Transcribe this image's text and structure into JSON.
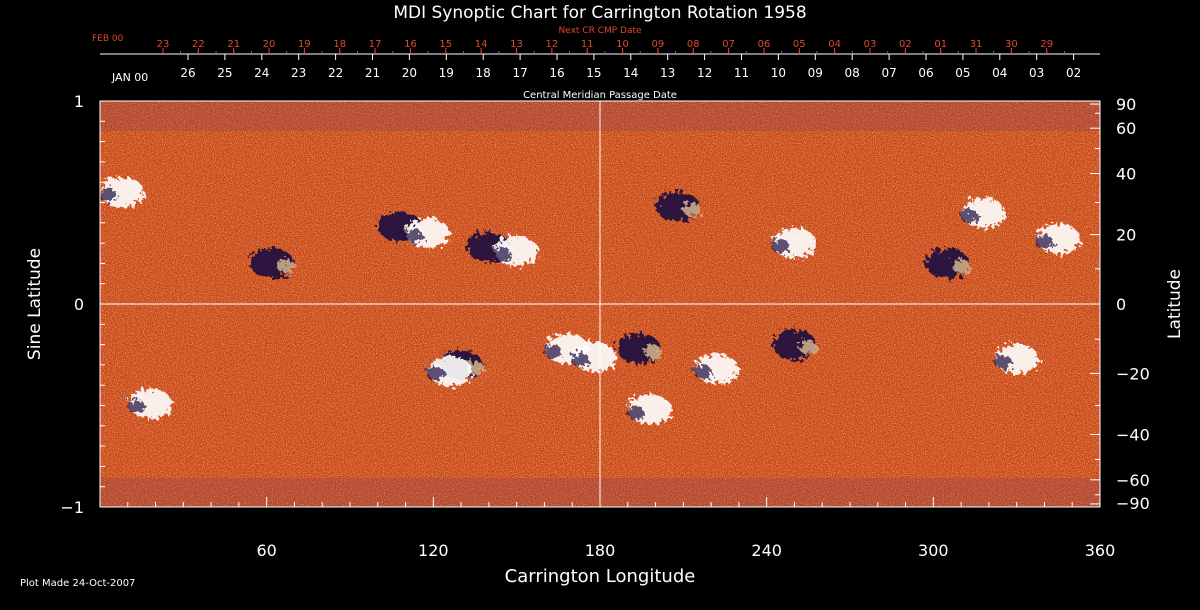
{
  "chart_data": {
    "type": "heatmap",
    "title": "MDI Synoptic Chart for Carrington Rotation 1958",
    "xlabel": "Carrington Longitude",
    "ylabel_left": "Sine Latitude",
    "ylabel_right": "Latitude",
    "top_axis_upper_label": "Next CR CMP Date",
    "top_axis_lower_label": "Central Meridian Passage Date",
    "xlim": [
      0,
      360
    ],
    "ylim": [
      -1,
      1
    ],
    "x_ticks": [
      60,
      120,
      180,
      240,
      300,
      360
    ],
    "y_ticks_left": [
      {
        "value": 1,
        "label": "1"
      },
      {
        "value": 0,
        "label": "0"
      },
      {
        "value": -1,
        "label": "−1"
      }
    ],
    "y_ticks_right": [
      {
        "lat": 90,
        "label": "90"
      },
      {
        "lat": 60,
        "label": "60"
      },
      {
        "lat": 40,
        "label": "40"
      },
      {
        "lat": 20,
        "label": "20"
      },
      {
        "lat": 0,
        "label": "0"
      },
      {
        "lat": -20,
        "label": "−20"
      },
      {
        "lat": -40,
        "label": "−40"
      },
      {
        "lat": -60,
        "label": "−60"
      },
      {
        "lat": -90,
        "label": "−90"
      }
    ],
    "next_cr_dates": {
      "start_label": "FEB 00",
      "labels": [
        "23",
        "22",
        "21",
        "20",
        "19",
        "18",
        "17",
        "16",
        "15",
        "14",
        "13",
        "12",
        "11",
        "10",
        "09",
        "08",
        "07",
        "06",
        "05",
        "04",
        "03",
        "02",
        "01",
        "31",
        "30",
        "29"
      ]
    },
    "cmp_dates": {
      "start_label": "JAN 00",
      "labels": [
        "26",
        "25",
        "24",
        "23",
        "22",
        "21",
        "20",
        "19",
        "18",
        "17",
        "16",
        "15",
        "14",
        "13",
        "12",
        "11",
        "10",
        "09",
        "08",
        "07",
        "06",
        "05",
        "04",
        "03",
        "02"
      ]
    },
    "colors": {
      "background_map": "#d8561e",
      "positive_polarity": "#ffffff",
      "negative_polarity": "#1a1040",
      "axis": "#ffffff",
      "next_cr_text": "#e04a2a"
    },
    "regions": [
      {
        "lon": 8,
        "sinlat": 0.55,
        "polarity": "positive"
      },
      {
        "lon": 62,
        "sinlat": 0.2,
        "polarity": "negative"
      },
      {
        "lon": 108,
        "sinlat": 0.38,
        "polarity": "negative"
      },
      {
        "lon": 118,
        "sinlat": 0.35,
        "polarity": "positive"
      },
      {
        "lon": 140,
        "sinlat": 0.28,
        "polarity": "negative"
      },
      {
        "lon": 150,
        "sinlat": 0.26,
        "polarity": "positive"
      },
      {
        "lon": 208,
        "sinlat": 0.48,
        "polarity": "negative"
      },
      {
        "lon": 250,
        "sinlat": 0.3,
        "polarity": "positive"
      },
      {
        "lon": 305,
        "sinlat": 0.2,
        "polarity": "negative"
      },
      {
        "lon": 318,
        "sinlat": 0.45,
        "polarity": "positive"
      },
      {
        "lon": 345,
        "sinlat": 0.32,
        "polarity": "positive"
      },
      {
        "lon": 18,
        "sinlat": -0.49,
        "polarity": "positive"
      },
      {
        "lon": 130,
        "sinlat": -0.3,
        "polarity": "negative"
      },
      {
        "lon": 126,
        "sinlat": -0.33,
        "polarity": "positive"
      },
      {
        "lon": 168,
        "sinlat": -0.22,
        "polarity": "positive"
      },
      {
        "lon": 178,
        "sinlat": -0.26,
        "polarity": "positive"
      },
      {
        "lon": 194,
        "sinlat": -0.22,
        "polarity": "negative"
      },
      {
        "lon": 222,
        "sinlat": -0.32,
        "polarity": "positive"
      },
      {
        "lon": 250,
        "sinlat": -0.2,
        "polarity": "negative"
      },
      {
        "lon": 198,
        "sinlat": -0.52,
        "polarity": "positive"
      },
      {
        "lon": 330,
        "sinlat": -0.27,
        "polarity": "positive"
      }
    ]
  },
  "footer": "Plot Made 24-Oct-2007"
}
